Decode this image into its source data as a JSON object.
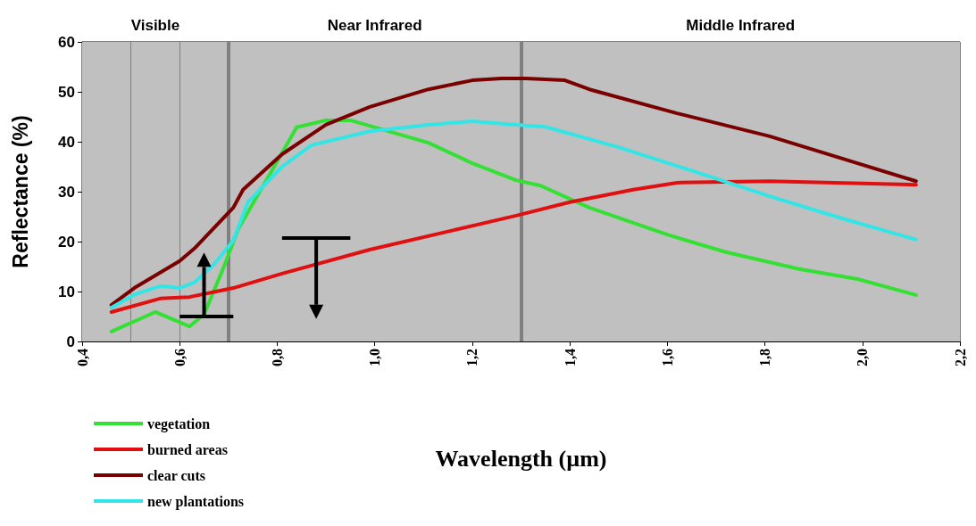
{
  "chart_data": {
    "type": "line",
    "xlabel": "Wavelength (µm)",
    "ylabel": "Reflectance (%)",
    "xlim": [
      0.4,
      2.2
    ],
    "ylim": [
      0,
      60
    ],
    "xticks": [
      {
        "value": 0.4,
        "label": "0,4"
      },
      {
        "value": 0.6,
        "label": "0,6"
      },
      {
        "value": 0.8,
        "label": "0,8"
      },
      {
        "value": 1.0,
        "label": "1,0"
      },
      {
        "value": 1.2,
        "label": "1,2"
      },
      {
        "value": 1.4,
        "label": "1,4"
      },
      {
        "value": 1.6,
        "label": "1,6"
      },
      {
        "value": 1.8,
        "label": "1,8"
      },
      {
        "value": 2.0,
        "label": "2,0"
      },
      {
        "value": 2.2,
        "label": "2,2"
      }
    ],
    "yticks": [
      0,
      10,
      20,
      30,
      40,
      50,
      60
    ],
    "legend": "bottom left",
    "marker": "none",
    "line_style": "solid",
    "series": [
      {
        "name": "vegetation",
        "color": "#33e033",
        "x": [
          0.46,
          0.55,
          0.62,
          0.65,
          0.69,
          0.72,
          0.78,
          0.84,
          0.9,
          0.95,
          1.11,
          1.2,
          1.29,
          1.34,
          1.44,
          1.6,
          1.72,
          1.87,
          1.99,
          2.11
        ],
        "values": [
          2.0,
          5.9,
          3.0,
          5.4,
          14.8,
          22.5,
          32.7,
          42.9,
          44.3,
          44.3,
          39.8,
          35.7,
          32.3,
          31.2,
          26.8,
          21.4,
          17.9,
          14.5,
          12.5,
          9.3
        ]
      },
      {
        "name": "burned areas",
        "color": "#e01010",
        "x": [
          0.46,
          0.56,
          0.62,
          0.71,
          0.81,
          0.99,
          1.29,
          1.4,
          1.53,
          1.62,
          1.81,
          2.11
        ],
        "values": [
          5.9,
          8.6,
          8.9,
          10.7,
          13.6,
          18.4,
          25.2,
          27.9,
          30.4,
          31.8,
          32.1,
          31.4
        ]
      },
      {
        "name": "clear cuts",
        "color": "#7a0000",
        "x": [
          0.46,
          0.51,
          0.6,
          0.63,
          0.71,
          0.73,
          0.81,
          0.9,
          0.99,
          1.11,
          1.2,
          1.26,
          1.31,
          1.39,
          1.44,
          1.62,
          1.81,
          1.99,
          2.11
        ],
        "values": [
          7.3,
          10.9,
          16.1,
          18.6,
          26.8,
          30.4,
          37.5,
          43.4,
          47.0,
          50.5,
          52.3,
          52.7,
          52.7,
          52.3,
          50.5,
          45.7,
          41.1,
          35.7,
          32.1
        ]
      },
      {
        "name": "new plantations",
        "color": "#33e5e5",
        "x": [
          0.46,
          0.51,
          0.56,
          0.6,
          0.63,
          0.67,
          0.71,
          0.74,
          0.81,
          0.87,
          0.99,
          1.11,
          1.2,
          1.29,
          1.35,
          1.5,
          1.66,
          1.81,
          1.96,
          2.11
        ],
        "values": [
          6.8,
          9.5,
          11.1,
          10.7,
          11.8,
          15.4,
          20.2,
          27.9,
          35.0,
          39.3,
          42.1,
          43.4,
          44.1,
          43.4,
          43.0,
          38.9,
          33.9,
          29.1,
          24.6,
          20.4
        ]
      }
    ],
    "ref_lines": [
      {
        "axis": "x",
        "value": 0.5,
        "color": "#808080"
      },
      {
        "axis": "x",
        "value": 0.6,
        "color": "#808080"
      },
      {
        "axis": "x",
        "value": 0.7,
        "color": "#808080"
      },
      {
        "axis": "x",
        "value": 1.3,
        "color": "#808080"
      }
    ],
    "bands": [
      {
        "axis": "x",
        "from": 0.4,
        "to": 0.7,
        "label": "Visible",
        "color": "#c0c0c0"
      },
      {
        "axis": "x",
        "from": 0.7,
        "to": 1.3,
        "label": "Near Infrared",
        "color": "#c0c0c0"
      },
      {
        "axis": "x",
        "from": 1.3,
        "to": 2.2,
        "label": "Middle Infrared",
        "color": "#c0c0c0"
      }
    ]
  }
}
